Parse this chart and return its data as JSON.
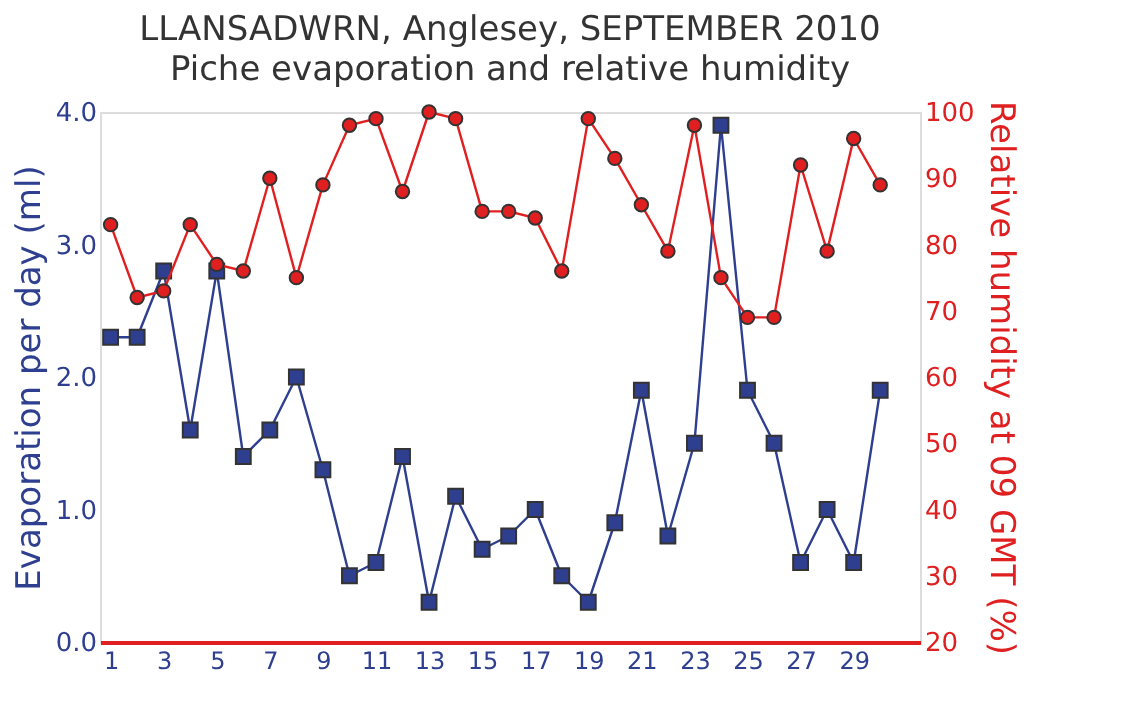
{
  "chart_data": {
    "type": "line",
    "title": "LLANSADWRN, Anglesey, SEPTEMBER 2010",
    "subtitle": "Piche evaporation and relative humidity",
    "ylabel": "Evaporation per day (ml)",
    "y2label": "Relative humidity at 09 GMT (%)",
    "x": [
      1,
      2,
      3,
      4,
      5,
      6,
      7,
      8,
      9,
      10,
      11,
      12,
      13,
      14,
      15,
      16,
      17,
      18,
      19,
      20,
      21,
      22,
      23,
      24,
      25,
      26,
      27,
      28,
      29,
      30
    ],
    "xlim": [
      0.6,
      31.5
    ],
    "xticks": [
      1,
      3,
      5,
      7,
      9,
      11,
      13,
      15,
      17,
      19,
      21,
      23,
      25,
      27,
      29
    ],
    "ylim": [
      0,
      4
    ],
    "yticks": [
      {
        "value": 0,
        "label": "0.0"
      },
      {
        "value": 1,
        "label": "1.0"
      },
      {
        "value": 2,
        "label": "2.0"
      },
      {
        "value": 3,
        "label": "3.0"
      },
      {
        "value": 4,
        "label": "4.0"
      }
    ],
    "y2lim": [
      20,
      100
    ],
    "y2ticks": [
      20,
      30,
      40,
      50,
      60,
      70,
      80,
      90,
      100
    ],
    "grid": false,
    "series": [
      {
        "color": "#2e3f8f",
        "marker": "square",
        "values": [
          2.3,
          2.3,
          2.8,
          1.6,
          2.8,
          1.4,
          1.6,
          2.0,
          1.3,
          0.5,
          0.6,
          1.4,
          0.3,
          1.1,
          0.7,
          0.8,
          1.0,
          0.5,
          0.3,
          0.9,
          1.9,
          0.8,
          1.5,
          3.9,
          1.9,
          1.5,
          0.6,
          1.0,
          0.6,
          1.9
        ]
      },
      {
        "color": "#e02020",
        "marker": "circle",
        "axis": "y2",
        "values": [
          83,
          72,
          73,
          83,
          77,
          76,
          90,
          75,
          89,
          98,
          99,
          88,
          100,
          99,
          85,
          85,
          84,
          76,
          99,
          93,
          86,
          79,
          98,
          75,
          69,
          69,
          92,
          79,
          96,
          89
        ]
      }
    ]
  }
}
